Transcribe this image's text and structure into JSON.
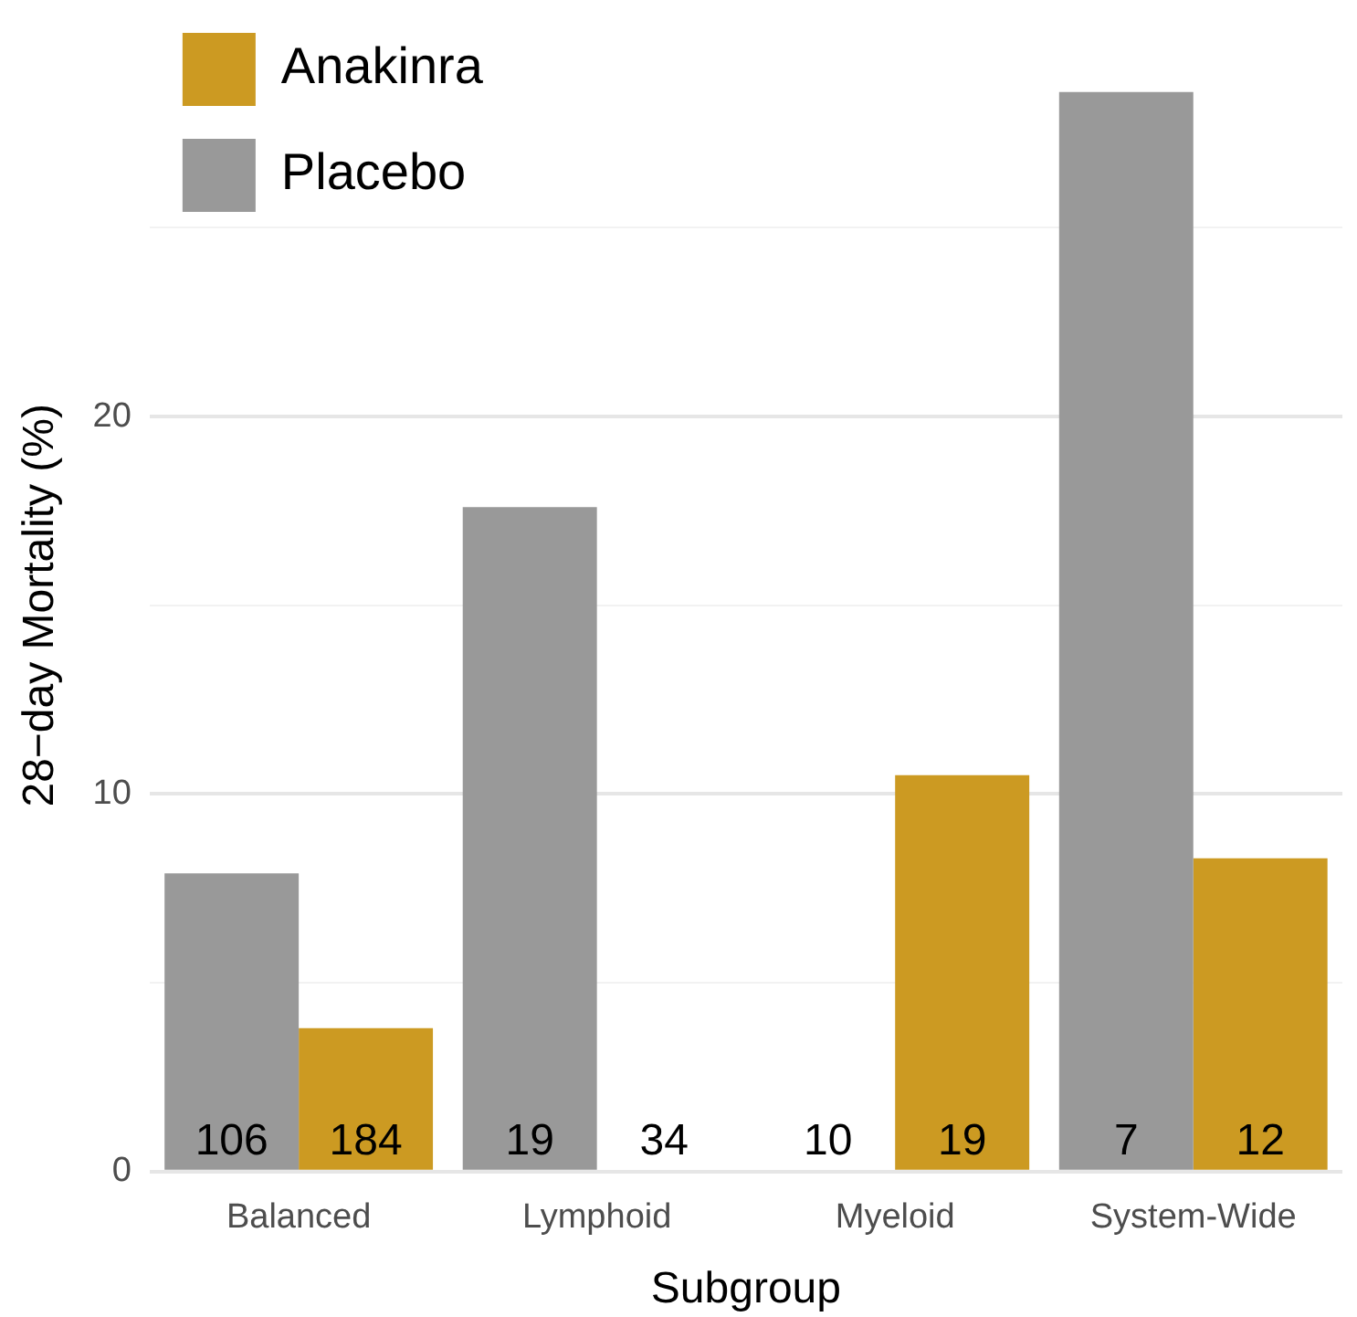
{
  "chart_data": {
    "type": "bar",
    "xlabel": "Subgroup",
    "ylabel": "28−day Mortality (%)",
    "categories": [
      "Balanced",
      "Lymphoid",
      "Myeloid",
      "System-Wide"
    ],
    "series": [
      {
        "name": "Placebo",
        "color": "#999999",
        "values": [
          7.9,
          17.6,
          0,
          28.6
        ]
      },
      {
        "name": "Anakinra",
        "color": "#cc9a22",
        "values": [
          3.8,
          0,
          10.5,
          8.3
        ]
      }
    ],
    "annotations": [
      {
        "text": "106",
        "x": "Balanced",
        "y": 0
      },
      {
        "text": "184",
        "x": "Balanced",
        "y": 0
      },
      {
        "text": "19",
        "x": "Lymphoid",
        "y": 0
      },
      {
        "text": "34",
        "x": "Lymphoid",
        "y": 0
      },
      {
        "text": "10",
        "x": "Myeloid",
        "y": 0
      },
      {
        "text": "19",
        "x": "Myeloid",
        "y": 0
      },
      {
        "text": "7",
        "x": "System-Wide",
        "y": 0
      },
      {
        "text": "12",
        "x": "System-Wide",
        "y": 0
      }
    ],
    "ylim": [
      0,
      30
    ],
    "yticks": [
      0,
      {
        "value": 5,
        "label": null
      },
      10,
      {
        "value": 15,
        "label": null
      },
      20,
      {
        "value": 25,
        "label": null
      }
    ],
    "grid": "y",
    "legend": "top left"
  }
}
